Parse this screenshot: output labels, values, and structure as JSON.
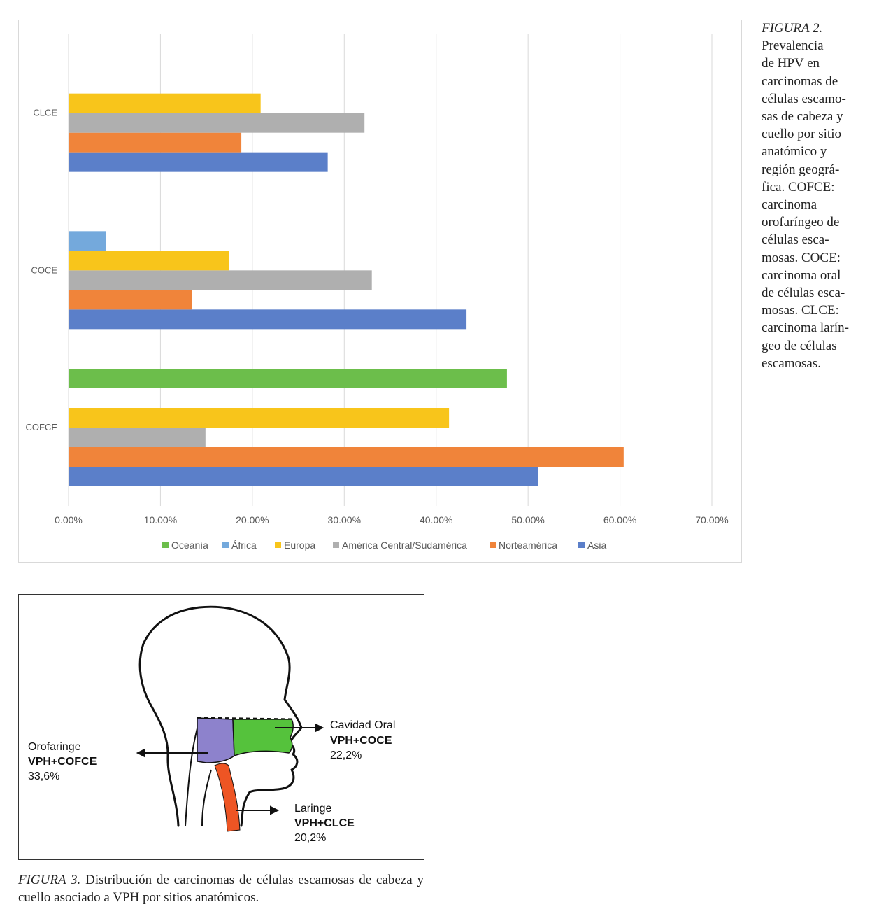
{
  "chart_data": {
    "type": "bar",
    "orientation": "horizontal",
    "categories": [
      "COFCE",
      "COCE",
      "CLCE"
    ],
    "xlim": [
      0,
      0.7
    ],
    "ticks": [
      "0.00%",
      "10.00%",
      "20.00%",
      "30.00%",
      "40.00%",
      "50.00%",
      "60.00%",
      "70.00%"
    ],
    "grid": true,
    "legend_position": "bottom",
    "series": [
      {
        "name": "Asia",
        "color": "#5b7fc9",
        "values": [
          0.511,
          0.433,
          0.282
        ]
      },
      {
        "name": "Norteamérica",
        "color": "#f0843a",
        "values": [
          0.604,
          0.134,
          0.188
        ]
      },
      {
        "name": "América Central/Sudamérica",
        "color": "#afafaf",
        "values": [
          0.149,
          0.33,
          0.322
        ]
      },
      {
        "name": "Europa",
        "color": "#f8c51b",
        "values": [
          0.414,
          0.175,
          0.209
        ]
      },
      {
        "name": "África",
        "color": "#74a9dc",
        "values": [
          null,
          0.041,
          null
        ]
      },
      {
        "name": "Oceanía",
        "color": "#6cbe4b",
        "values": [
          0.477,
          null,
          null
        ]
      }
    ],
    "legend_order": [
      "Oceanía",
      "África",
      "Europa",
      "América Central/Sudamérica",
      "Norteamérica",
      "Asia"
    ]
  },
  "figure2_caption": {
    "label": "FIGURA 2.",
    "lines": [
      "Prevalencia",
      "de HPV en",
      "carcinomas de",
      "células escamo-",
      "sas de cabeza y",
      "cuello por sitio",
      "anatómico y",
      "región geográ-",
      "fica. COFCE:",
      "carcinoma",
      "orofaríngeo de",
      "células esca-",
      "mosas. COCE:",
      "carcinoma oral",
      "de células esca-",
      "mosas. CLCE:",
      "carcinoma larín-",
      "geo de células",
      "escamosas."
    ]
  },
  "figure3": {
    "orofaringe": {
      "name": "Orofaringe",
      "tag": "VPH+COFCE",
      "pct": "33,6%",
      "color": "#8d82cc"
    },
    "cavidad": {
      "name": "Cavidad Oral",
      "tag": "VPH+COCE",
      "pct": "22,2%",
      "color": "#55c23c"
    },
    "laringe": {
      "name": "Laringe",
      "tag": "VPH+CLCE",
      "pct": "20,2%",
      "color": "#ee5524"
    }
  },
  "figure3_caption": {
    "label": "FIGURA 3.",
    "text": "Distribución de carcinomas de células escamosas de cabeza y cuello asociado a VPH por sitios anatómicos."
  }
}
